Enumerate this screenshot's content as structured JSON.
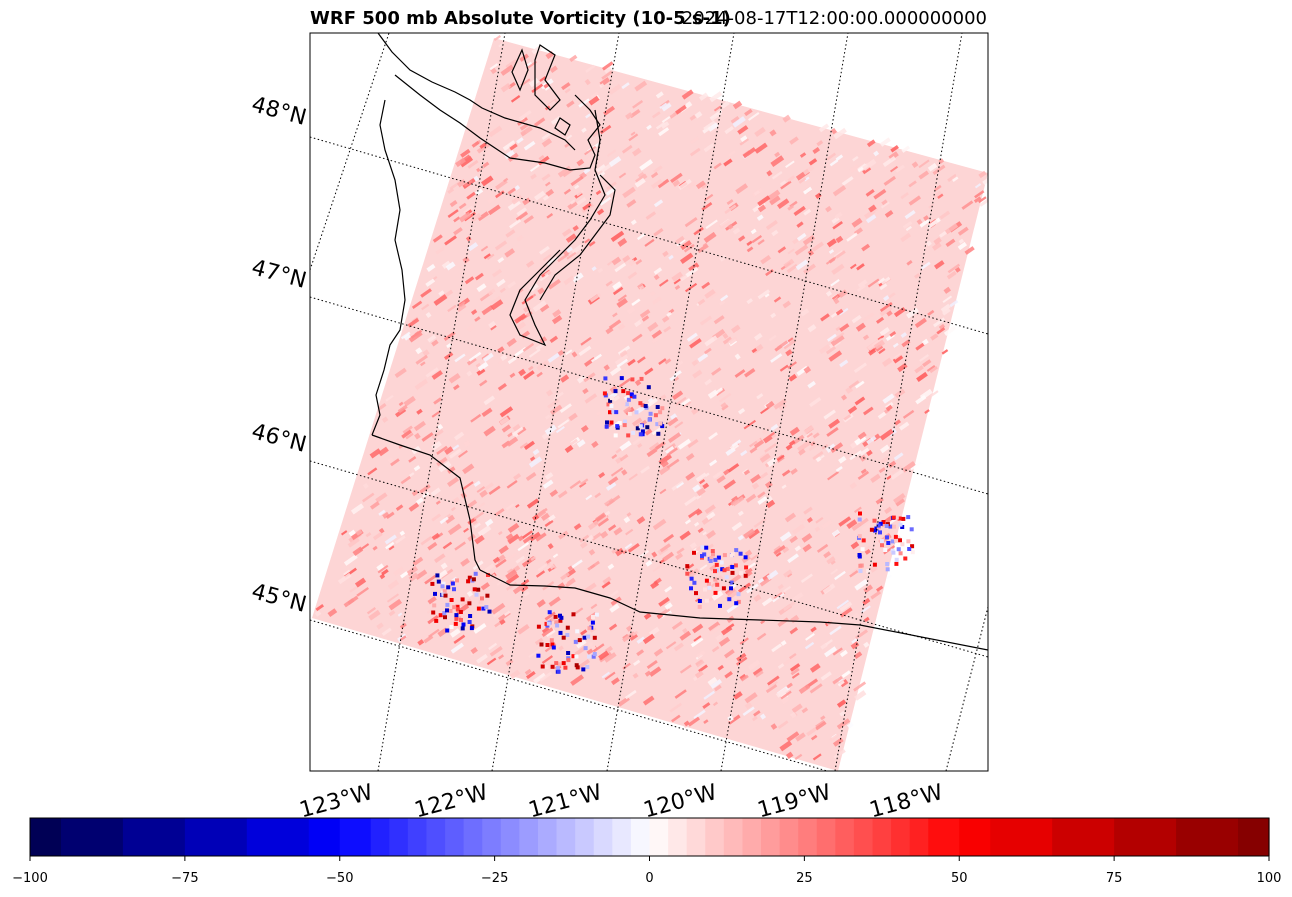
{
  "title_left": "WRF 500 mb Absolute Vorticity (10-5 s-1)",
  "title_right": "2024-08-17T12:00:00.000000000",
  "chart_data": {
    "type": "heatmap",
    "variable": "500 mb absolute vorticity",
    "projection": "Lambert conformal",
    "lat_labels": [
      "48°N",
      "47°N",
      "46°N",
      "45°N"
    ],
    "lat_values": [
      48,
      47,
      46,
      45
    ],
    "lon_labels": [
      "123°W",
      "122°W",
      "121°W",
      "120°W",
      "119°W",
      "118°W"
    ],
    "lon_values": [
      -123,
      -122,
      -121,
      -120,
      -119,
      -118
    ],
    "colorbar": {
      "min": -100,
      "max": 100,
      "ticks": [
        -100,
        -75,
        -50,
        -25,
        0,
        25,
        50,
        75,
        100
      ],
      "tick_labels": [
        "−100",
        "−75",
        "−50",
        "−25",
        "0",
        "25",
        "50",
        "75",
        "100"
      ],
      "colormap": "seismic",
      "levels": [
        -100,
        -95,
        -85,
        -75,
        -65,
        -55,
        -50,
        -45,
        -42,
        -39,
        -36,
        -33,
        -30,
        -27,
        -24,
        -21,
        -18,
        -15,
        -12,
        -9,
        -6,
        -3,
        0,
        3,
        6,
        9,
        12,
        15,
        18,
        21,
        24,
        27,
        30,
        33,
        36,
        39,
        42,
        45,
        50,
        55,
        65,
        75,
        85,
        95,
        100
      ]
    },
    "background_value_range": [
      5,
      25
    ],
    "features": [
      {
        "name": "negative vorticity cluster",
        "lat": 46.2,
        "lon": -120.8,
        "min": -90,
        "max": 60
      },
      {
        "name": "mixed vorticity cluster",
        "lat": 45.2,
        "lon": -122.2,
        "min": -80,
        "max": 90
      },
      {
        "name": "mixed vorticity cluster",
        "lat": 44.8,
        "lon": -121.2,
        "min": -70,
        "max": 85
      },
      {
        "name": "mixed vorticity cluster",
        "lat": 45.3,
        "lon": -119.6,
        "min": -60,
        "max": 75
      },
      {
        "name": "mixed vorticity cluster",
        "lat": 45.4,
        "lon": -118.2,
        "min": -60,
        "max": 80
      }
    ],
    "xlabel": "",
    "ylabel": ""
  }
}
